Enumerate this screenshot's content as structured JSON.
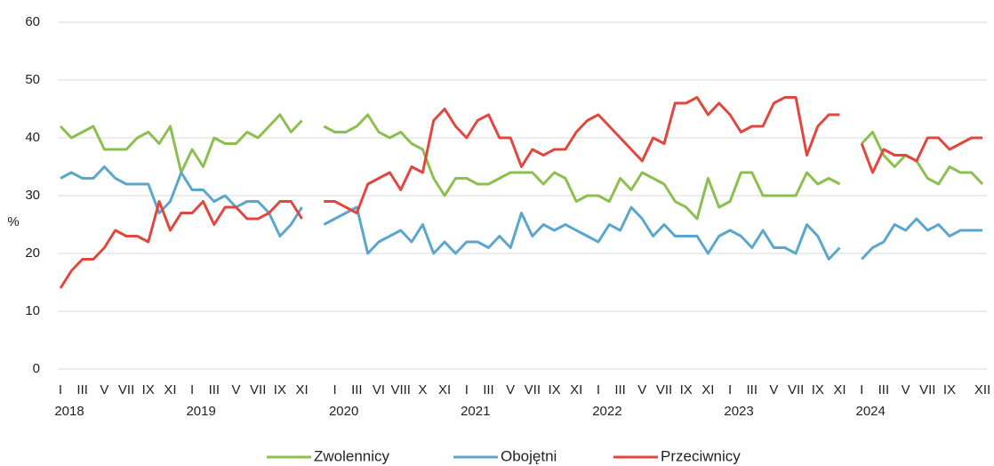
{
  "chart_data": {
    "type": "line",
    "y_label": "%",
    "ylim": [
      0,
      60
    ],
    "yticks": [
      0,
      10,
      20,
      30,
      40,
      50,
      60
    ],
    "grid": true,
    "categories": [
      "I",
      null,
      "III",
      null,
      "V",
      null,
      "VII",
      null,
      "IX",
      null,
      "XI",
      null,
      "I",
      null,
      "III",
      null,
      "V",
      null,
      "VII",
      null,
      "IX",
      null,
      "XI",
      null,
      null,
      "I",
      null,
      "III",
      null,
      "VI",
      null,
      "VIII",
      null,
      "X",
      null,
      "XI",
      null,
      "I",
      null,
      "III",
      null,
      "V",
      null,
      "VII",
      null,
      "IX",
      null,
      "XI",
      null,
      "I",
      null,
      "III",
      null,
      "V",
      null,
      "VII",
      null,
      "IX",
      null,
      "XI",
      null,
      "I",
      null,
      "III",
      null,
      "V",
      null,
      "VII",
      null,
      "IX",
      null,
      "XI",
      null,
      "I",
      null,
      "III",
      null,
      "V",
      null,
      "VII",
      null,
      "IX",
      null,
      null,
      "XII"
    ],
    "category_years": [
      "2018",
      null,
      null,
      null,
      null,
      null,
      null,
      null,
      null,
      null,
      null,
      null,
      "2019",
      null,
      null,
      null,
      null,
      null,
      null,
      null,
      null,
      null,
      null,
      null,
      null,
      "2020",
      null,
      null,
      null,
      null,
      null,
      null,
      null,
      null,
      null,
      null,
      null,
      "2021",
      null,
      null,
      null,
      null,
      null,
      null,
      null,
      null,
      null,
      null,
      null,
      "2022",
      null,
      null,
      null,
      null,
      null,
      null,
      null,
      null,
      null,
      null,
      null,
      "2023",
      null,
      null,
      null,
      null,
      null,
      null,
      null,
      null,
      null,
      null,
      null,
      "2024",
      null,
      null,
      null,
      null,
      null,
      null,
      null,
      null,
      null,
      null,
      null
    ],
    "series": [
      {
        "name": "Zwolennicy",
        "color": "#8cbf4e",
        "values": [
          42,
          40,
          41,
          42,
          38,
          38,
          38,
          40,
          41,
          39,
          42,
          34,
          38,
          35,
          40,
          39,
          39,
          41,
          40,
          42,
          44,
          41,
          43,
          null,
          42,
          41,
          41,
          42,
          44,
          41,
          40,
          41,
          39,
          38,
          33,
          30,
          33,
          33,
          32,
          32,
          33,
          34,
          34,
          34,
          32,
          34,
          33,
          29,
          30,
          30,
          29,
          33,
          31,
          34,
          33,
          32,
          29,
          28,
          26,
          33,
          28,
          29,
          34,
          34,
          30,
          30,
          30,
          30,
          34,
          32,
          33,
          32,
          null,
          39,
          41,
          37,
          35,
          37,
          36,
          33,
          32,
          35,
          34,
          34,
          32
        ]
      },
      {
        "name": "Obojętni",
        "color": "#5ba6cc",
        "values": [
          33,
          34,
          33,
          33,
          35,
          33,
          32,
          32,
          32,
          27,
          29,
          34,
          31,
          31,
          29,
          30,
          28,
          29,
          29,
          27,
          23,
          25,
          28,
          null,
          25,
          26,
          27,
          28,
          20,
          22,
          23,
          24,
          22,
          25,
          20,
          22,
          20,
          22,
          22,
          21,
          23,
          21,
          27,
          23,
          25,
          24,
          25,
          24,
          23,
          22,
          25,
          24,
          28,
          26,
          23,
          25,
          23,
          23,
          23,
          20,
          23,
          24,
          23,
          21,
          24,
          21,
          21,
          20,
          25,
          23,
          19,
          21,
          null,
          19,
          21,
          22,
          25,
          24,
          26,
          24,
          25,
          23,
          24,
          24,
          24
        ]
      },
      {
        "name": "Przeciwnicy",
        "color": "#e0473e",
        "values": [
          14,
          17,
          19,
          19,
          21,
          24,
          23,
          23,
          22,
          29,
          24,
          27,
          27,
          29,
          25,
          28,
          28,
          26,
          26,
          27,
          29,
          29,
          26,
          null,
          29,
          29,
          28,
          27,
          32,
          33,
          34,
          31,
          35,
          34,
          43,
          45,
          42,
          40,
          43,
          44,
          40,
          40,
          35,
          38,
          37,
          38,
          38,
          41,
          43,
          44,
          42,
          40,
          38,
          36,
          40,
          39,
          46,
          46,
          47,
          44,
          46,
          44,
          41,
          42,
          42,
          46,
          47,
          47,
          37,
          42,
          44,
          44,
          null,
          39,
          34,
          38,
          37,
          37,
          36,
          40,
          40,
          38,
          39,
          40,
          40
        ]
      }
    ]
  }
}
